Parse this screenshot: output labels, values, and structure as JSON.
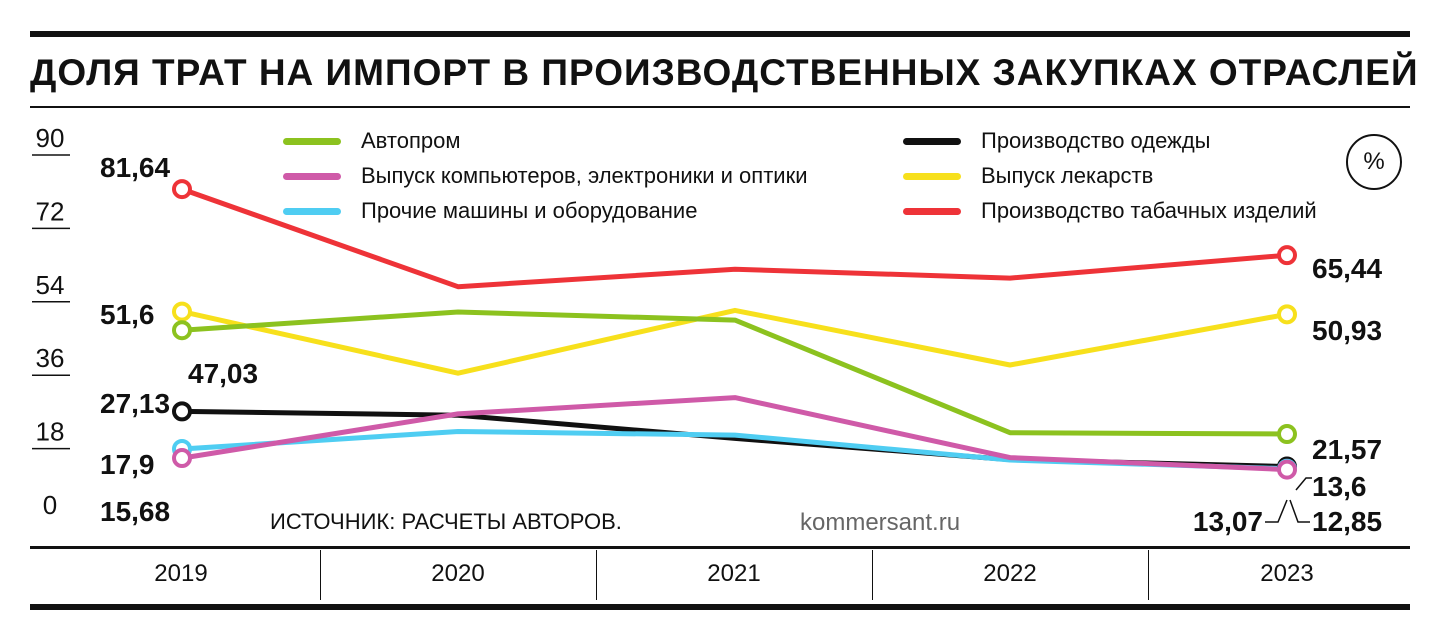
{
  "chart_data": {
    "type": "line",
    "title": "ДОЛЯ ТРАТ НА ИМПОРТ В ПРОИЗВОДСТВЕННЫХ ЗАКУПКАХ ОТРАСЛЕЙ",
    "unit": "%",
    "source": "ИСТОЧНИК: РАСЧЕТЫ АВТОРОВ.",
    "site": "kommersant.ru",
    "x": [
      "2019",
      "2020",
      "2021",
      "2022",
      "2023"
    ],
    "y_ticks": [
      "90",
      "72",
      "54",
      "36",
      "18",
      "0"
    ],
    "ylim": [
      0,
      90
    ],
    "legend_position": "top",
    "series": [
      {
        "name": "Автопром",
        "color": "#8cc21f",
        "values": [
          47.03,
          51.5,
          49.5,
          21.9,
          21.57
        ],
        "start_label": "47,03",
        "end_label": "21,57"
      },
      {
        "name": "Выпуск компьютеров, электроники и оптики",
        "color": "#cf5aa8",
        "values": [
          15.68,
          26.5,
          30.5,
          15.8,
          12.85
        ],
        "start_label": "15,68",
        "end_label": "12,85"
      },
      {
        "name": "Прочие машины и оборудование",
        "color": "#4fcdf2",
        "values": [
          17.9,
          22.2,
          21.3,
          15.2,
          13.07
        ],
        "start_label": "17,9",
        "end_label": "13,07"
      },
      {
        "name": "Производство одежды",
        "color": "#111111",
        "values": [
          27.13,
          26.2,
          20.5,
          15.3,
          13.6
        ],
        "start_label": "27,13",
        "end_label": "13,6"
      },
      {
        "name": "Выпуск лекарств",
        "color": "#f7e01c",
        "values": [
          51.6,
          36.5,
          51.9,
          38.5,
          50.93
        ],
        "start_label": "51,6",
        "end_label": "50,93"
      },
      {
        "name": "Производство табачных изделий",
        "color": "#ee3338",
        "values": [
          81.64,
          57.7,
          62.0,
          59.8,
          65.44
        ],
        "start_label": "81,64",
        "end_label": "65,44"
      }
    ]
  }
}
